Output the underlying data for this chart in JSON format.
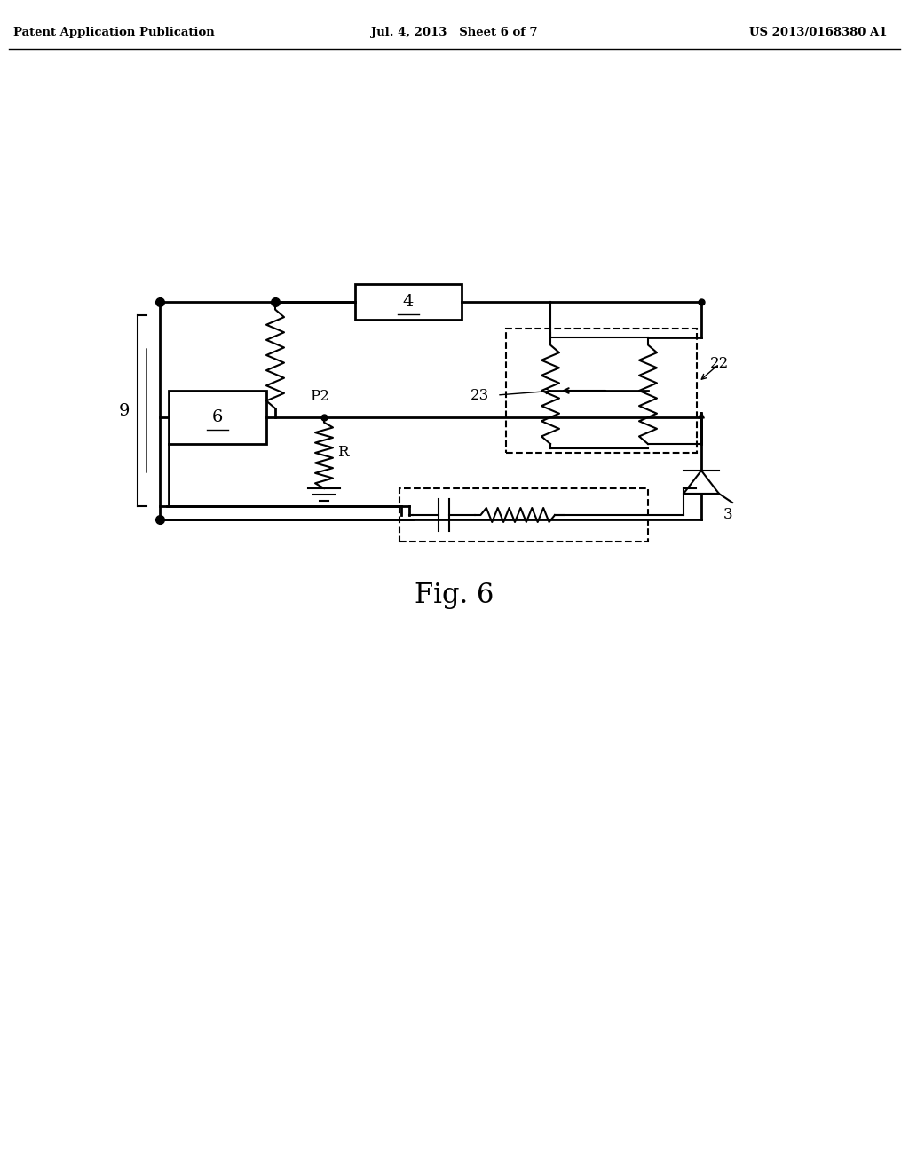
{
  "background_color": "#ffffff",
  "header_left": "Patent Application Publication",
  "header_mid": "Jul. 4, 2013   Sheet 6 of 7",
  "header_right": "US 2013/0168380 A1",
  "fig_label": "Fig. 6",
  "label_9": "9",
  "label_4": "4",
  "label_6": "6",
  "label_22": "22",
  "label_23": "23",
  "label_P2": "P2",
  "label_R": "R",
  "label_3": "3"
}
